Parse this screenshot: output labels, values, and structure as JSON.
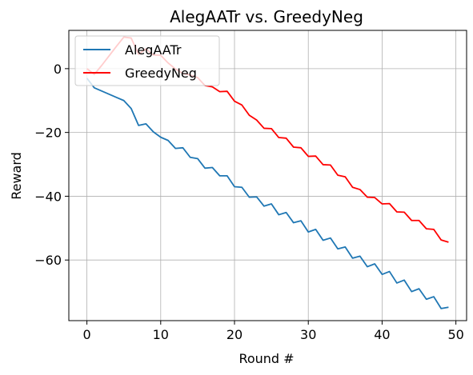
{
  "chart_data": {
    "type": "line",
    "title": "AlegAATr vs. GreedyNeg",
    "xlabel": "Round #",
    "ylabel": "Reward",
    "xlim": [
      -2.45,
      51.45
    ],
    "ylim": [
      -79.0,
      12.0
    ],
    "xticks": [
      0,
      10,
      20,
      30,
      40,
      50
    ],
    "yticks": [
      -60,
      -40,
      -20,
      0
    ],
    "grid": true,
    "legend_position": "upper-left",
    "x": [
      0,
      1,
      2,
      3,
      4,
      5,
      6,
      7,
      8,
      9,
      10,
      11,
      12,
      13,
      14,
      15,
      16,
      17,
      18,
      19,
      20,
      21,
      22,
      23,
      24,
      25,
      26,
      27,
      28,
      29,
      30,
      31,
      32,
      33,
      34,
      35,
      36,
      37,
      38,
      39,
      40,
      41,
      42,
      43,
      44,
      45,
      46,
      47,
      48,
      49
    ],
    "series": [
      {
        "name": "AlegAATr",
        "color": "#1f77b4",
        "values": [
          -3,
          -6,
          -7,
          -8,
          -9,
          -10,
          -12.5,
          -17.8,
          -17.3,
          -19.8,
          -21.5,
          -22.5,
          -25,
          -24.8,
          -27.8,
          -28.2,
          -31.2,
          -31,
          -33.6,
          -33.6,
          -37,
          -37.2,
          -40.3,
          -40.2,
          -43.1,
          -42.4,
          -45.8,
          -45.1,
          -48.3,
          -47.7,
          -51.2,
          -50.4,
          -53.8,
          -53.1,
          -56.5,
          -55.9,
          -59.4,
          -58.8,
          -62.1,
          -61.2,
          -64.5,
          -63.6,
          -67.2,
          -66.3,
          -69.9,
          -69,
          -72.3,
          -71.5,
          -75.2,
          -74.8
        ]
      },
      {
        "name": "GreedyNeg",
        "color": "#ff0000",
        "values": [
          0,
          -1.8,
          1,
          4,
          7,
          9.9,
          9.6,
          4.5,
          6.2,
          4.3,
          4.2,
          1.8,
          -0.1,
          -1.5,
          -2,
          -2.8,
          -5.3,
          -5.7,
          -7.2,
          -7.1,
          -10.2,
          -11.4,
          -14.6,
          -16.1,
          -18.7,
          -18.8,
          -21.6,
          -21.8,
          -24.6,
          -24.8,
          -27.5,
          -27.4,
          -30.1,
          -30.2,
          -33.4,
          -33.9,
          -37.2,
          -37.9,
          -40.3,
          -40.4,
          -42.4,
          -42.3,
          -44.9,
          -45,
          -47.6,
          -47.6,
          -50.2,
          -50.4,
          -53.7,
          -54.4
        ]
      }
    ]
  }
}
